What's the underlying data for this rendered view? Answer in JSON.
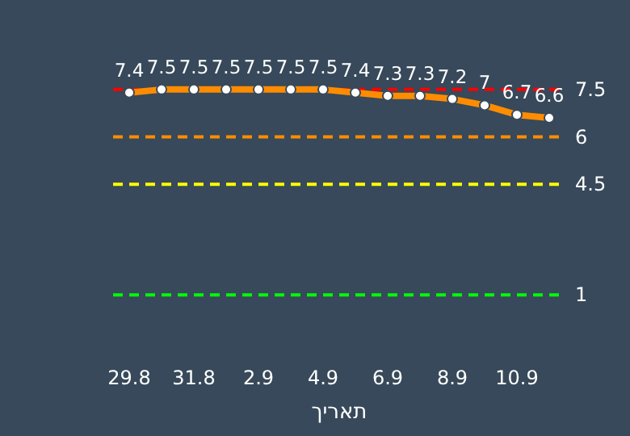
{
  "chart_data": {
    "type": "line",
    "xlabel": "תאריך",
    "categories": [
      "29.8",
      null,
      "31.8",
      null,
      "2.9",
      null,
      "4.9",
      null,
      "6.9",
      null,
      "8.9",
      null,
      "10.9",
      null
    ],
    "series": [
      {
        "color": "#ff8c00",
        "values": [
          7.4,
          7.5,
          7.5,
          7.5,
          7.5,
          7.5,
          7.5,
          7.4,
          7.3,
          7.3,
          7.2,
          7,
          6.7,
          6.6
        ]
      }
    ],
    "data_labels": true,
    "marker": "circle",
    "line_style": "solid",
    "ref_lines": [
      {
        "axis": "y",
        "value": 7.5,
        "label": "7.5",
        "color": "#ff0000",
        "line_style": "dashed"
      },
      {
        "axis": "y",
        "value": 6,
        "label": "6",
        "color": "#ff8c00",
        "line_style": "dashed"
      },
      {
        "axis": "y",
        "value": 4.5,
        "label": "4.5",
        "color": "#ffff00",
        "line_style": "dashed"
      },
      {
        "axis": "y",
        "value": 1,
        "label": "1",
        "color": "#00ff00",
        "line_style": "dashed"
      }
    ]
  }
}
